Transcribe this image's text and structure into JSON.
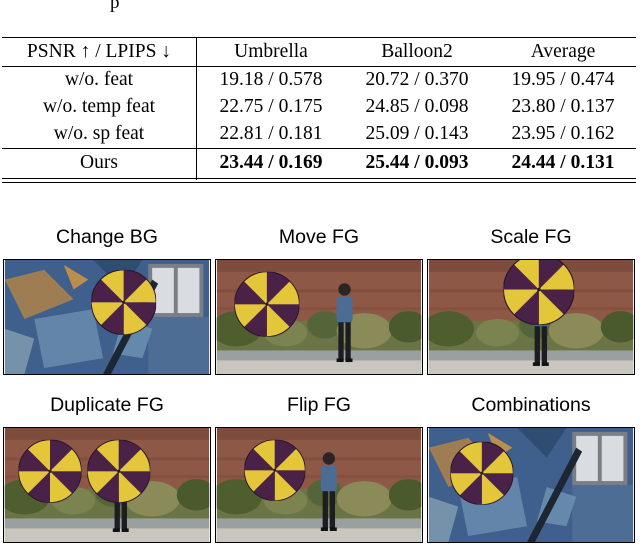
{
  "caption_fragment": "p",
  "table": {
    "header": [
      "PSNR ↑ / LPIPS ↓",
      "Umbrella",
      "Balloon2",
      "Average"
    ],
    "rows": [
      [
        "w/o. feat",
        "19.18 / 0.578",
        "20.72 / 0.370",
        "19.95 / 0.474"
      ],
      [
        "w/o. temp feat",
        "22.75 / 0.175",
        "24.85 / 0.098",
        "23.80 / 0.137"
      ],
      [
        "w/o. sp feat",
        "22.81 / 0.181",
        "25.09 / 0.143",
        "23.95 / 0.162"
      ]
    ],
    "ours": [
      "Ours",
      "23.44 / 0.169",
      "25.44 / 0.093",
      "24.44 / 0.131"
    ]
  },
  "grid": {
    "titles": [
      "Change BG",
      "Move FG",
      "Scale FG",
      "Duplicate FG",
      "Flip FG",
      "Combinations"
    ]
  },
  "colors": {
    "umbrella_purple": "#4a2248",
    "umbrella_yellow": "#e3c63a",
    "mural_blue": "#3f5f8c",
    "brick": "#8e5846",
    "foliage": "#5f6d3a"
  }
}
